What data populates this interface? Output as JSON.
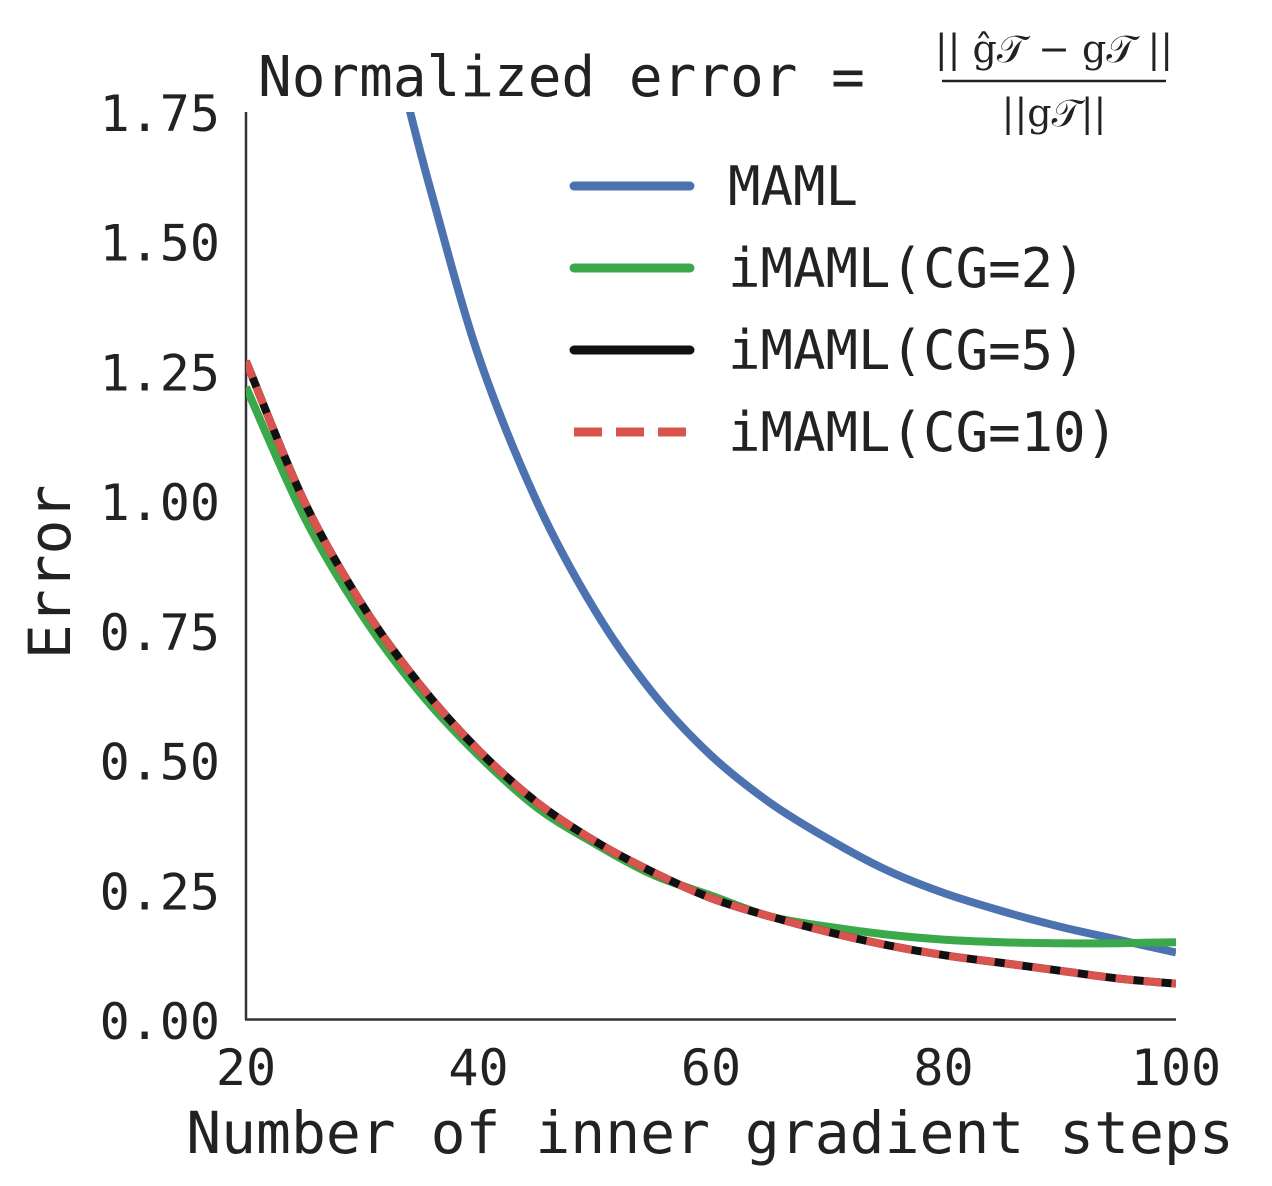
{
  "chart_data": {
    "type": "line",
    "title_prefix": "Normalized error =",
    "title_formula": {
      "numerator": "|| ĝ𝒯 − g𝒯 ||",
      "denominator": "||g𝒯||"
    },
    "xlabel": "Number of inner gradient steps",
    "ylabel": "Error",
    "xlim": [
      20,
      100
    ],
    "ylim": [
      0,
      1.75
    ],
    "x_ticks": [
      "20",
      "40",
      "60",
      "80",
      "100"
    ],
    "x_tick_values": [
      20,
      40,
      60,
      80,
      100
    ],
    "y_ticks": [
      "0.00",
      "0.25",
      "0.50",
      "0.75",
      "1.00",
      "1.25",
      "1.50",
      "1.75"
    ],
    "y_tick_values": [
      0,
      0.25,
      0.5,
      0.75,
      1.0,
      1.25,
      1.5,
      1.75
    ],
    "grid": false,
    "legend_position": "top-right",
    "x": [
      20,
      25,
      30,
      35,
      40,
      45,
      50,
      55,
      60,
      65,
      70,
      75,
      80,
      85,
      90,
      95,
      100
    ],
    "series": [
      {
        "name": "MAML",
        "color": "#4c72b0",
        "style": "solid",
        "x": [
          34,
          36,
          40,
          45,
          50,
          55,
          60,
          65,
          70,
          75,
          80,
          85,
          90,
          95,
          100
        ],
        "values": [
          1.76,
          1.59,
          1.28,
          1.0,
          0.79,
          0.63,
          0.51,
          0.42,
          0.35,
          0.29,
          0.245,
          0.21,
          0.18,
          0.155,
          0.13
        ]
      },
      {
        "name": "iMAML(CG=2)",
        "color": "#3ba84a",
        "style": "solid",
        "x": [
          20,
          25,
          30,
          35,
          40,
          45,
          50,
          55,
          60,
          65,
          70,
          75,
          80,
          85,
          90,
          95,
          100
        ],
        "values": [
          1.22,
          0.97,
          0.78,
          0.63,
          0.51,
          0.41,
          0.34,
          0.28,
          0.24,
          0.2,
          0.18,
          0.165,
          0.155,
          0.15,
          0.148,
          0.148,
          0.15
        ]
      },
      {
        "name": "iMAML(CG=5)",
        "color": "#111111",
        "style": "solid",
        "x": [
          20,
          25,
          30,
          35,
          40,
          45,
          50,
          55,
          60,
          65,
          70,
          75,
          80,
          85,
          90,
          95,
          100
        ],
        "values": [
          1.27,
          1.0,
          0.8,
          0.645,
          0.52,
          0.42,
          0.345,
          0.285,
          0.235,
          0.2,
          0.17,
          0.145,
          0.125,
          0.11,
          0.095,
          0.08,
          0.07
        ]
      },
      {
        "name": "iMAML(CG=10)",
        "color": "#d9534f",
        "style": "dashed",
        "x": [
          20,
          25,
          30,
          35,
          40,
          45,
          50,
          55,
          60,
          65,
          70,
          75,
          80,
          85,
          90,
          95,
          100
        ],
        "values": [
          1.27,
          1.0,
          0.8,
          0.645,
          0.52,
          0.42,
          0.345,
          0.285,
          0.235,
          0.2,
          0.17,
          0.145,
          0.125,
          0.11,
          0.095,
          0.08,
          0.07
        ]
      }
    ]
  }
}
